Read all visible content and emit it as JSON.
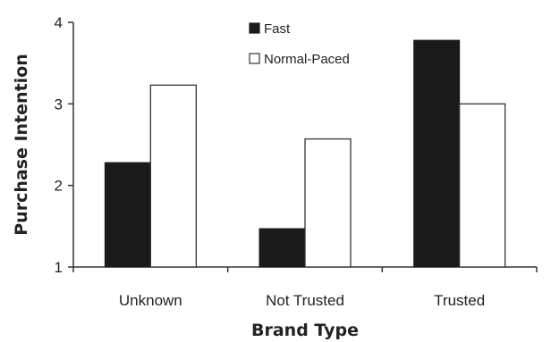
{
  "chart_data": {
    "type": "bar",
    "title": "",
    "xlabel": "Brand Type",
    "ylabel": "Purchase Intention",
    "categories": [
      "Unknown",
      "Not Trusted",
      "Trusted"
    ],
    "series": [
      {
        "name": "Fast",
        "values": [
          2.28,
          1.47,
          3.78
        ],
        "color": "#1a1a1a",
        "fill": "solid"
      },
      {
        "name": "Normal-Paced",
        "values": [
          3.23,
          2.57,
          3.0
        ],
        "color": "#ffffff",
        "fill": "outline"
      }
    ],
    "ylim": [
      1,
      4
    ],
    "yticks": [
      "1",
      "2",
      "3",
      "4"
    ],
    "grid": false,
    "legend_position": "top-center"
  }
}
